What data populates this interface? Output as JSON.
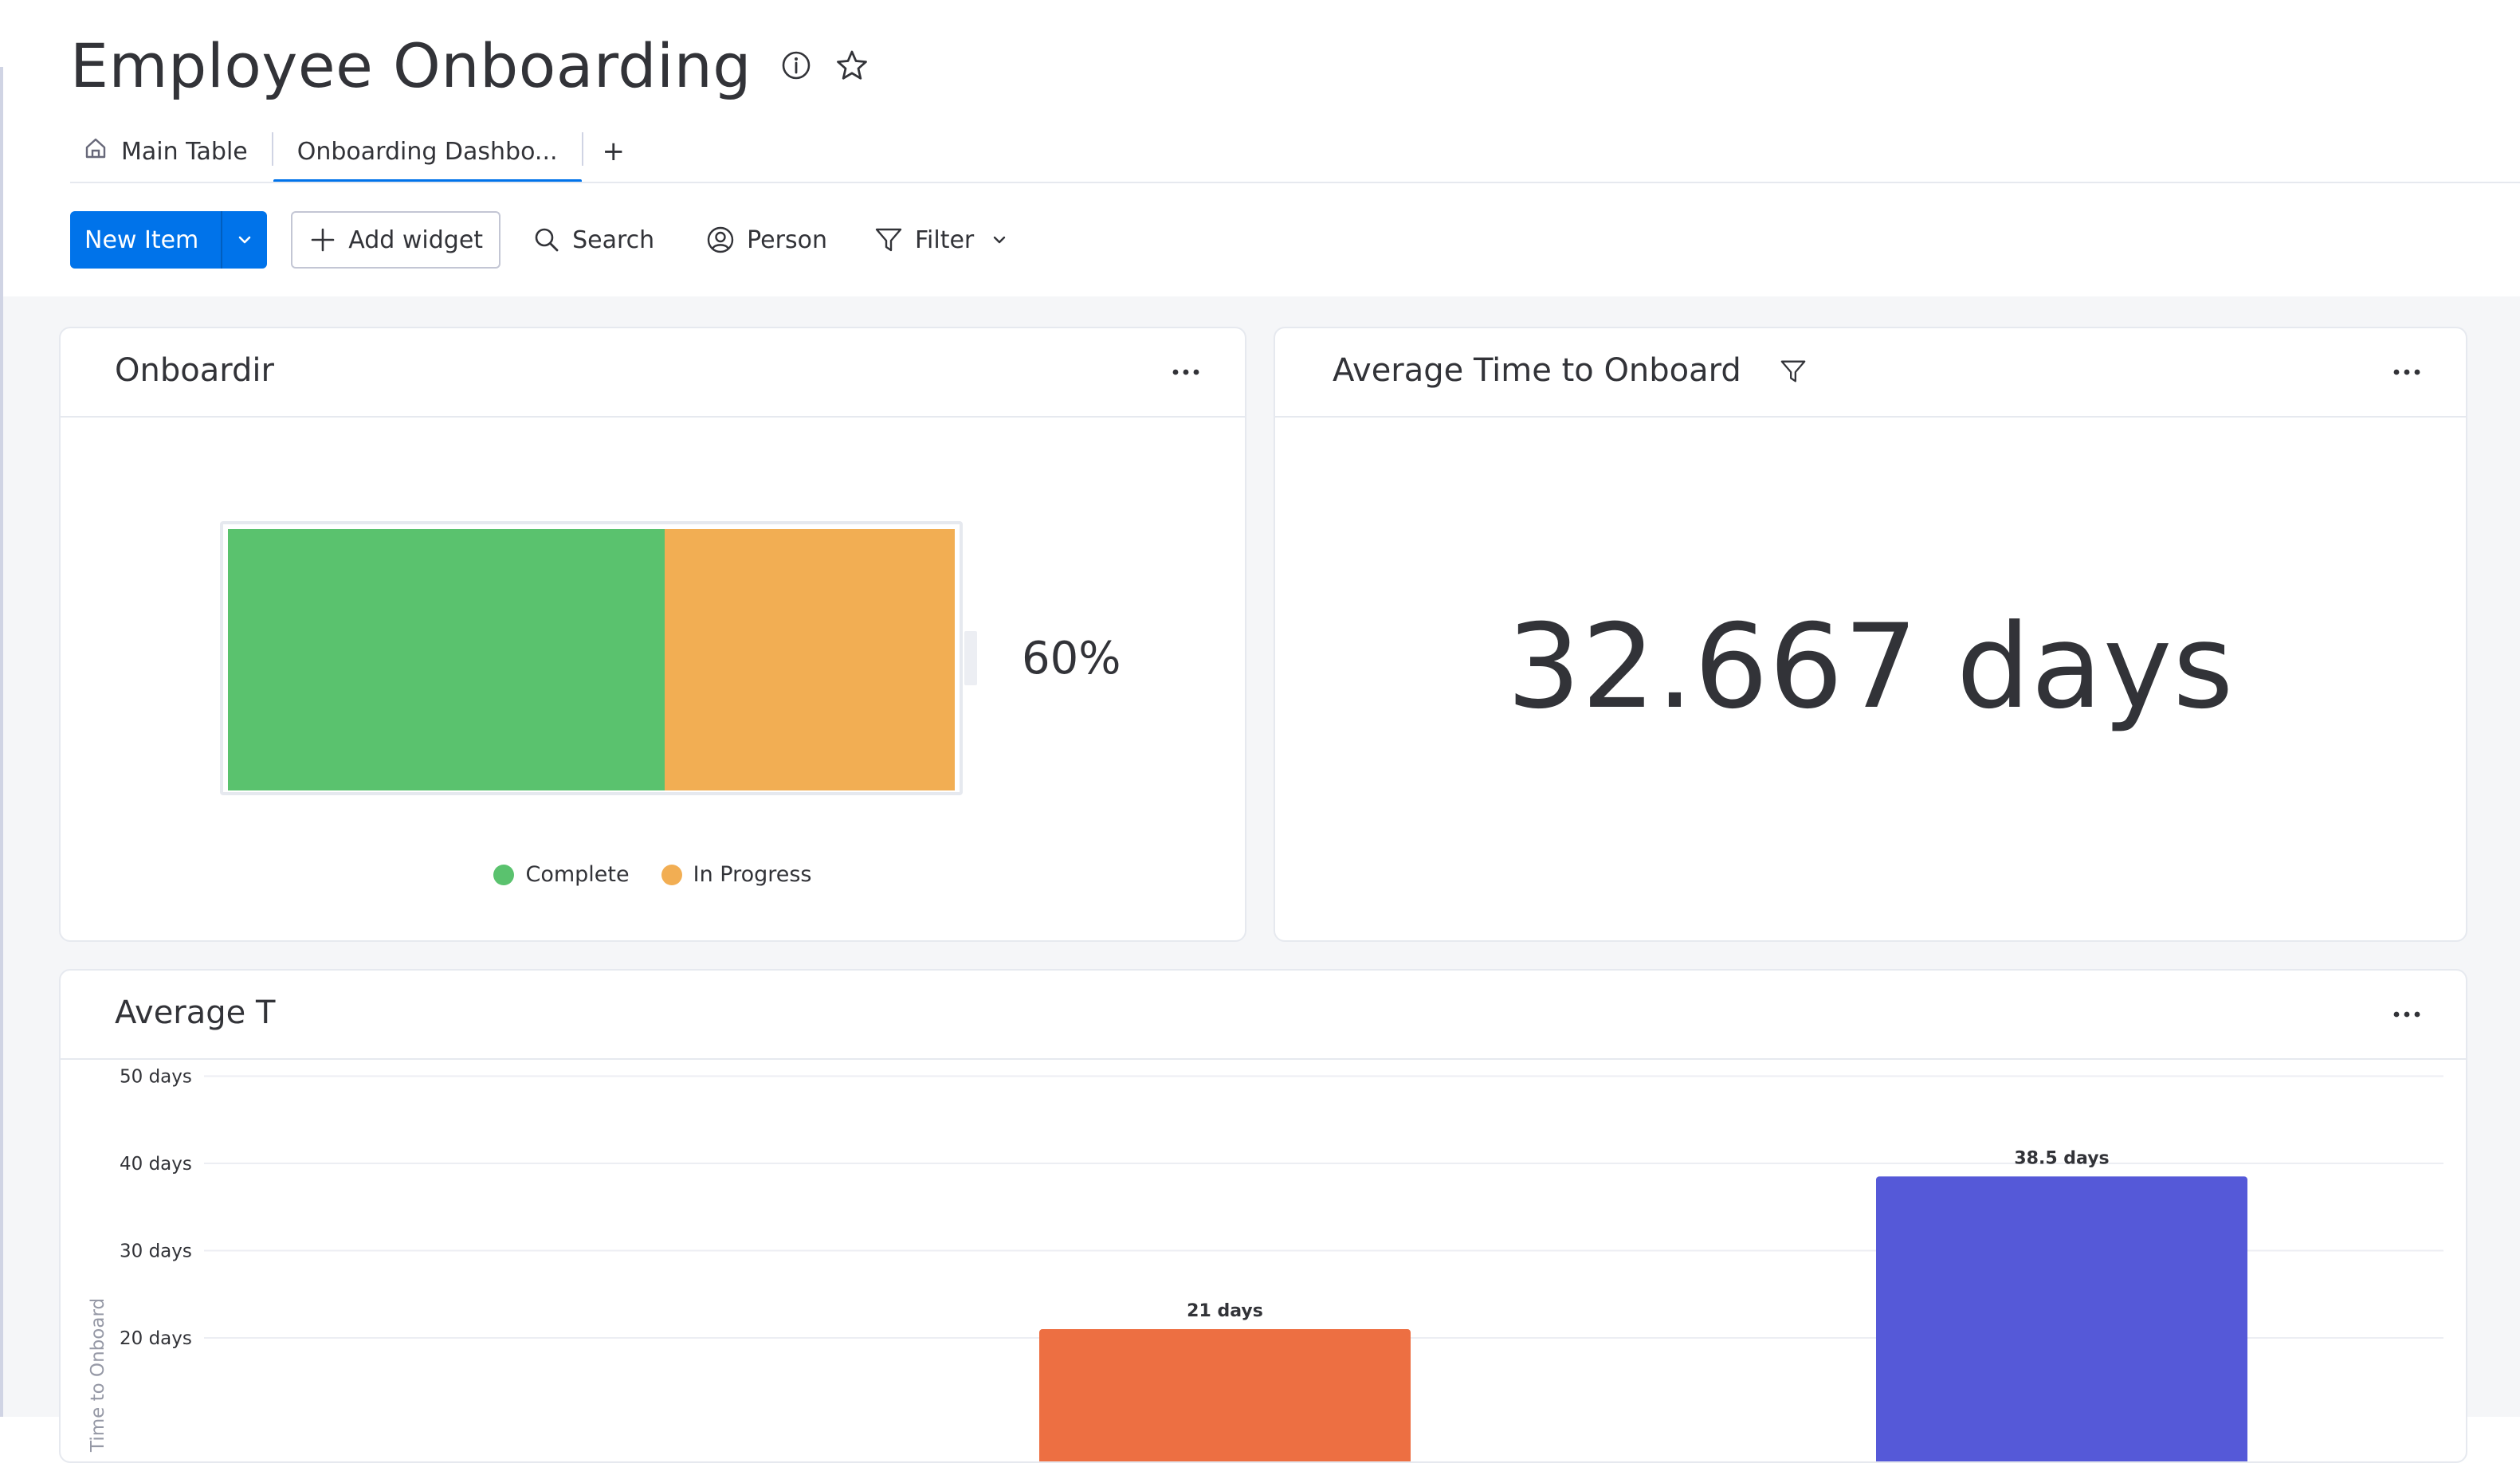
{
  "header": {
    "title": "Employee Onboarding"
  },
  "tabs": [
    {
      "label": "Main Table",
      "icon": "home-icon"
    },
    {
      "label": "Onboarding Dashbo...",
      "active": true
    }
  ],
  "tab_add_label": "+",
  "toolbar": {
    "new_item_label": "New Item",
    "add_widget_label": "Add widget",
    "search_label": "Search",
    "person_label": "Person",
    "filter_label": "Filter"
  },
  "widgets": {
    "battery": {
      "title": "Onboardir",
      "percent_label": "60%",
      "segments": [
        {
          "label": "Complete",
          "value": 60,
          "color": "#5ac26e"
        },
        {
          "label": "In Progress",
          "value": 40,
          "color": "#f2ae53"
        }
      ]
    },
    "average": {
      "title": "Average Time to Onboard",
      "value_label": "32.667 days"
    },
    "chart": {
      "title": "Average T"
    }
  },
  "chart_data": {
    "type": "bar",
    "title": "Average T",
    "ylabel": "Time to Onboard",
    "y_ticks": [
      "20 days",
      "30 days",
      "40 days",
      "50 days"
    ],
    "ylim": [
      0,
      50
    ],
    "series": [
      {
        "values": [
          21,
          38.5
        ],
        "labels": [
          "21 days",
          "38.5 days"
        ],
        "colors": [
          "#ed6f42",
          "#5559d8"
        ]
      }
    ],
    "grid": true
  }
}
